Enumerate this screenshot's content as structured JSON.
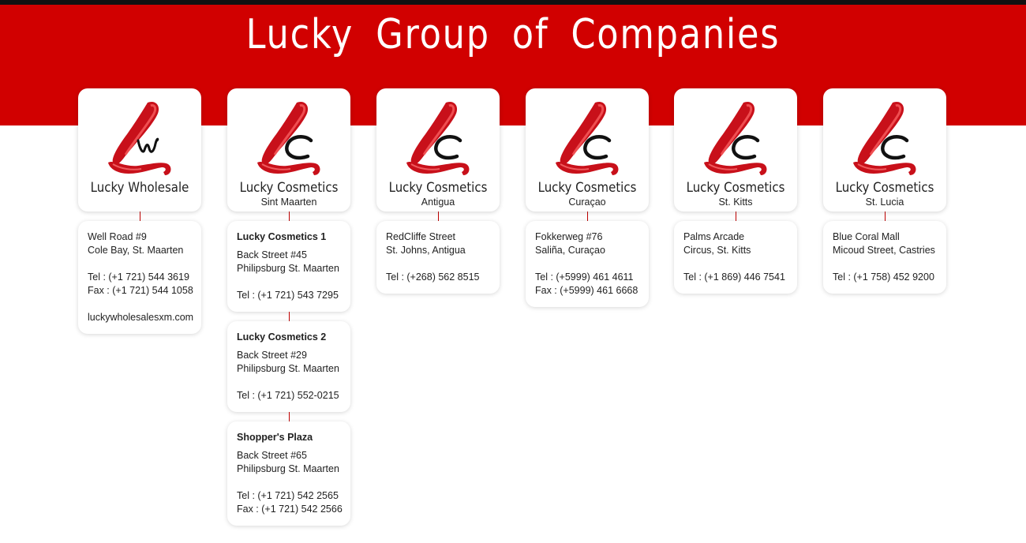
{
  "title": "Lucky Group of Companies",
  "colors": {
    "brand_red": "#d10000",
    "top_bar": "#111111"
  },
  "companies": [
    {
      "logo_icon": "lw-monogram-logo",
      "name": "Lucky Wholesale",
      "location": "",
      "cards": [
        {
          "heading": "",
          "lines": [
            "Well Road #9",
            "Cole Bay, St. Maarten",
            "",
            "Tel  : (+1 721) 544 3619",
            "Fax : (+1 721) 544 1058",
            "",
            "luckywholesalesxm.com"
          ]
        }
      ]
    },
    {
      "logo_icon": "lc-monogram-logo",
      "name": "Lucky Cosmetics",
      "location": "Sint Maarten",
      "cards": [
        {
          "heading": "Lucky Cosmetics 1",
          "lines": [
            "Back Street #45",
            "Philipsburg St. Maarten",
            "",
            "Tel  : (+1 721) 543 7295"
          ]
        },
        {
          "heading": "Lucky Cosmetics 2",
          "lines": [
            "Back Street #29",
            "Philipsburg St. Maarten",
            "",
            "Tel  : (+1 721) 552-0215"
          ]
        },
        {
          "heading": "Shopper's Plaza",
          "lines": [
            "Back Street #65",
            "Philipsburg St. Maarten",
            "",
            "Tel  : (+1 721) 542 2565",
            "Fax : (+1 721) 542 2566"
          ]
        }
      ]
    },
    {
      "logo_icon": "lc-monogram-logo",
      "name": "Lucky Cosmetics",
      "location": "Antigua",
      "cards": [
        {
          "heading": "",
          "lines": [
            "RedCliffe Street",
            "St. Johns, Antigua",
            "",
            "Tel  : (+268) 562 8515"
          ]
        }
      ]
    },
    {
      "logo_icon": "lc-monogram-logo",
      "name": "Lucky Cosmetics",
      "location": "Curaçao",
      "cards": [
        {
          "heading": "",
          "lines": [
            "Fokkerweg #76",
            "Saliña, Curaçao",
            "",
            "Tel  : (+5999) 461 4611",
            "Fax : (+5999) 461 6668"
          ]
        }
      ]
    },
    {
      "logo_icon": "lc-monogram-logo",
      "name": "Lucky Cosmetics",
      "location": "St. Kitts",
      "cards": [
        {
          "heading": "",
          "lines": [
            "Palms Arcade",
            "Circus, St. Kitts",
            "",
            "Tel  : (+1 869) 446 7541"
          ]
        }
      ]
    },
    {
      "logo_icon": "lc-monogram-logo",
      "name": "Lucky Cosmetics",
      "location": "St. Lucia",
      "cards": [
        {
          "heading": "",
          "lines": [
            "Blue Coral Mall",
            "Micoud Street, Castries",
            "",
            "Tel  : (+1 758) 452 9200"
          ]
        }
      ]
    }
  ]
}
